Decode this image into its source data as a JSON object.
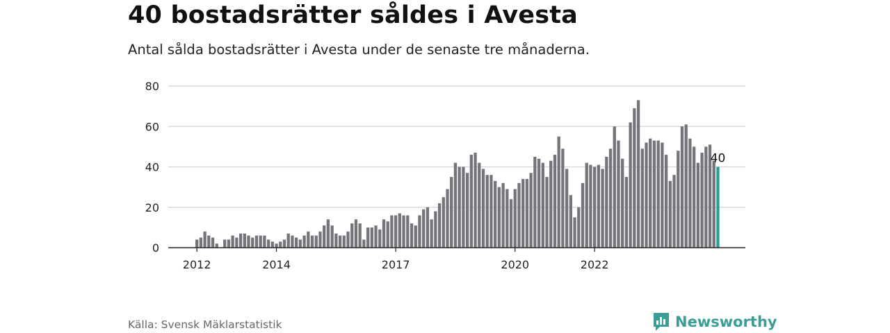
{
  "title": "40 bostadsrätter såldes i Avesta",
  "subtitle": "Antal sålda bostadsrätter i Avesta under de senaste tre månaderna.",
  "source": "Källa: Svensk Mäklarstatistik",
  "brand": {
    "name": "Newsworthy",
    "icon": "newsworthy-logo-icon",
    "color": "#3a9e97"
  },
  "colors": {
    "bar": "#76747b",
    "highlight": "#2a9d94",
    "grid": "#d4d4d4",
    "axis": "#222222"
  },
  "chart_data": {
    "type": "bar",
    "ylim": [
      0,
      80
    ],
    "yticks": [
      "0",
      "20",
      "40",
      "60",
      "80"
    ],
    "xticks": [
      {
        "label": "2012",
        "index": 0
      },
      {
        "label": "2014",
        "index": 20
      },
      {
        "label": "2017",
        "index": 50
      },
      {
        "label": "2020",
        "index": 80
      },
      {
        "label": "2022",
        "index": 100
      }
    ],
    "values": [
      4,
      5,
      8,
      6,
      5,
      2,
      0,
      4,
      4,
      6,
      5,
      7,
      7,
      6,
      5,
      6,
      6,
      6,
      4,
      3,
      2,
      3,
      4,
      7,
      6,
      5,
      4,
      6,
      8,
      6,
      6,
      8,
      11,
      14,
      11,
      7,
      6,
      6,
      8,
      12,
      14,
      12,
      4,
      10,
      10,
      11,
      9,
      14,
      13,
      16,
      16,
      17,
      16,
      16,
      12,
      11,
      16,
      19,
      20,
      14,
      18,
      22,
      25,
      29,
      35,
      42,
      40,
      40,
      37,
      46,
      47,
      42,
      39,
      36,
      36,
      33,
      30,
      32,
      29,
      24,
      29,
      32,
      34,
      34,
      37,
      45,
      44,
      42,
      35,
      43,
      46,
      55,
      49,
      39,
      26,
      15,
      20,
      32,
      42,
      41,
      40,
      41,
      39,
      45,
      49,
      60,
      53,
      44,
      35,
      62,
      69,
      73,
      49,
      52,
      54,
      53,
      53,
      52,
      46,
      33,
      36,
      48,
      60,
      61,
      54,
      50,
      42,
      47,
      50,
      51,
      43,
      40
    ],
    "highlight": {
      "index": 131,
      "label": "40"
    },
    "grid": true
  }
}
